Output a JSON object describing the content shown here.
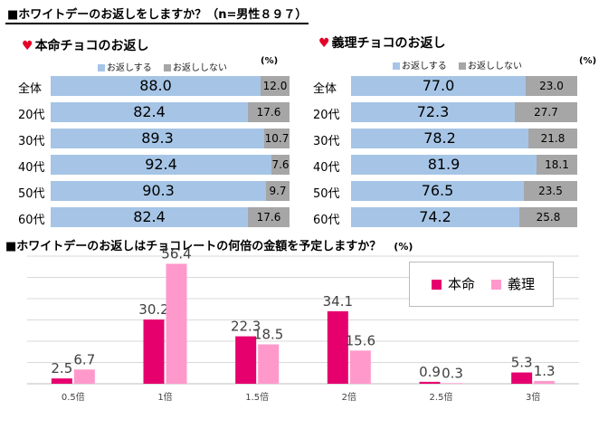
{
  "main_title": "■ホワイトデーのお返しをしますか？（n=男性８９７）",
  "colors": {
    "yes": "#a6c5e6",
    "no": "#a6a6a6",
    "honmei": "#e6006e",
    "giri": "#ff99cc",
    "heart": "#e60026"
  },
  "chart_data": [
    {
      "type": "bar",
      "orientation": "horizontal-stacked-100",
      "title": "本命チョコのお返し",
      "unit": "(%)",
      "categories": [
        "全体",
        "20代",
        "30代",
        "40代",
        "50代",
        "60代"
      ],
      "series": [
        {
          "name": "お返しする",
          "values": [
            88.0,
            82.4,
            89.3,
            92.4,
            90.3,
            82.4
          ]
        },
        {
          "name": "お返ししない",
          "values": [
            12.0,
            17.6,
            10.7,
            7.6,
            9.7,
            17.6
          ]
        }
      ],
      "value_labels": {
        "yes": [
          "88.0",
          "82.4",
          "89.3",
          "92.4",
          "90.3",
          "82.4"
        ],
        "no": [
          "12.0",
          "17.6",
          "10.7",
          "7.6",
          "9.7",
          "17.6"
        ]
      }
    },
    {
      "type": "bar",
      "orientation": "horizontal-stacked-100",
      "title": "義理チョコのお返し",
      "unit": "(%)",
      "categories": [
        "全体",
        "20代",
        "30代",
        "40代",
        "50代",
        "60代"
      ],
      "series": [
        {
          "name": "お返しする",
          "values": [
            77.0,
            72.3,
            78.2,
            81.9,
            76.5,
            74.2
          ]
        },
        {
          "name": "お返ししない",
          "values": [
            23.0,
            27.7,
            21.8,
            18.1,
            23.5,
            25.8
          ]
        }
      ],
      "value_labels": {
        "yes": [
          "77.0",
          "72.3",
          "78.2",
          "81.9",
          "76.5",
          "74.2"
        ],
        "no": [
          "23.0",
          "27.7",
          "21.8",
          "18.1",
          "23.5",
          "25.8"
        ]
      }
    },
    {
      "type": "bar",
      "title": "■ホワイトデーのお返しはチョコレートの何倍の金額を予定しますか？",
      "unit": "(%)",
      "categories": [
        "0.5倍",
        "1倍",
        "1.5倍",
        "2倍",
        "2.5倍",
        "3倍"
      ],
      "series": [
        {
          "name": "本命",
          "values": [
            2.5,
            30.2,
            22.3,
            34.1,
            0.9,
            5.3
          ]
        },
        {
          "name": "義理",
          "values": [
            6.7,
            56.4,
            18.5,
            15.6,
            0.3,
            1.3
          ]
        }
      ],
      "ylim": [
        0,
        60
      ],
      "grid": true,
      "legend": "top-right"
    }
  ]
}
